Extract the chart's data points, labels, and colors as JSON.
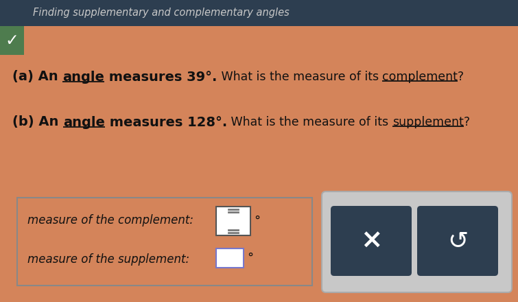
{
  "title": "Finding supplementary and complementary angles",
  "title_bg": "#2d3e50",
  "title_color": "#c8c8c8",
  "main_bg": "#d4845a",
  "label_complement": "measure of the complement:",
  "label_supplement": "measure of the supplement:",
  "input_box_border_complement": "#555555",
  "input_box_border_supplement": "#7777cc",
  "button_bg": "#2d3e50",
  "button_x": "×",
  "button_undo": "↺",
  "degree_symbol": "°",
  "checkmark_bg": "#4e7c4e"
}
